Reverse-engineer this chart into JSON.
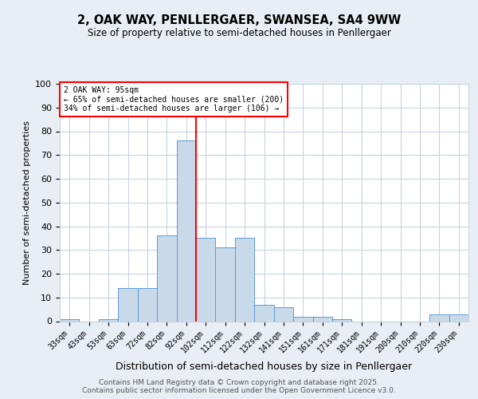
{
  "title": "2, OAK WAY, PENLLERGAER, SWANSEA, SA4 9WW",
  "subtitle": "Size of property relative to semi-detached houses in Penllergaer",
  "xlabel": "Distribution of semi-detached houses by size in Penllergaer",
  "ylabel": "Number of semi-detached properties",
  "categories": [
    "33sqm",
    "43sqm",
    "53sqm",
    "63sqm",
    "72sqm",
    "82sqm",
    "92sqm",
    "102sqm",
    "112sqm",
    "122sqm",
    "132sqm",
    "141sqm",
    "151sqm",
    "161sqm",
    "171sqm",
    "181sqm",
    "191sqm",
    "200sqm",
    "210sqm",
    "220sqm",
    "230sqm"
  ],
  "values": [
    1,
    0,
    1,
    14,
    14,
    36,
    76,
    35,
    31,
    35,
    7,
    6,
    2,
    2,
    1,
    0,
    0,
    0,
    0,
    3,
    3
  ],
  "bar_color": "#c8d9ea",
  "bar_edge_color": "#5b9bd5",
  "vline_x_index": 6,
  "annotation_line1": "2 OAK WAY: 95sqm",
  "annotation_line2": "← 65% of semi-detached houses are smaller (200)",
  "annotation_line3": "34% of semi-detached houses are larger (106) →",
  "ylim": [
    0,
    100
  ],
  "yticks": [
    0,
    10,
    20,
    30,
    40,
    50,
    60,
    70,
    80,
    90,
    100
  ],
  "footer1": "Contains HM Land Registry data © Crown copyright and database right 2025.",
  "footer2": "Contains public sector information licensed under the Open Government Licence v3.0.",
  "background_color": "#e8eef4",
  "plot_bg_color": "#ffffff",
  "grid_color": "#c8d4e0"
}
